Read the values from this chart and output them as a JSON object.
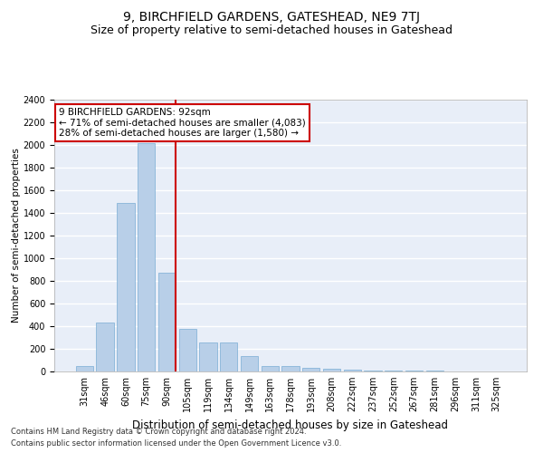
{
  "title": "9, BIRCHFIELD GARDENS, GATESHEAD, NE9 7TJ",
  "subtitle": "Size of property relative to semi-detached houses in Gateshead",
  "xlabel": "Distribution of semi-detached houses by size in Gateshead",
  "ylabel": "Number of semi-detached properties",
  "categories": [
    "31sqm",
    "46sqm",
    "60sqm",
    "75sqm",
    "90sqm",
    "105sqm",
    "119sqm",
    "134sqm",
    "149sqm",
    "163sqm",
    "178sqm",
    "193sqm",
    "208sqm",
    "222sqm",
    "237sqm",
    "252sqm",
    "267sqm",
    "281sqm",
    "296sqm",
    "311sqm",
    "325sqm"
  ],
  "values": [
    50,
    435,
    1490,
    2020,
    870,
    375,
    260,
    260,
    135,
    45,
    45,
    30,
    25,
    20,
    10,
    10,
    5,
    5,
    0,
    0,
    0
  ],
  "bar_color_normal": "#b8cfe8",
  "bar_color_highlight": "#b8cfe8",
  "bar_edgecolor": "#7aadd4",
  "highlight_bar_index": 4,
  "vline_x": 4.42,
  "vline_color": "#cc0000",
  "annotation_text": "9 BIRCHFIELD GARDENS: 92sqm\n← 71% of semi-detached houses are smaller (4,083)\n28% of semi-detached houses are larger (1,580) →",
  "annotation_box_color": "#ffffff",
  "annotation_box_edgecolor": "#cc0000",
  "ylim": [
    0,
    2400
  ],
  "yticks": [
    0,
    200,
    400,
    600,
    800,
    1000,
    1200,
    1400,
    1600,
    1800,
    2000,
    2200,
    2400
  ],
  "footnote1": "Contains HM Land Registry data © Crown copyright and database right 2024.",
  "footnote2": "Contains public sector information licensed under the Open Government Licence v3.0.",
  "bg_color": "#e8eef8",
  "grid_color": "#ffffff",
  "title_fontsize": 10,
  "subtitle_fontsize": 9,
  "xlabel_fontsize": 8.5,
  "ylabel_fontsize": 7.5,
  "tick_fontsize": 7,
  "annotation_fontsize": 7.5,
  "footnote_fontsize": 6
}
